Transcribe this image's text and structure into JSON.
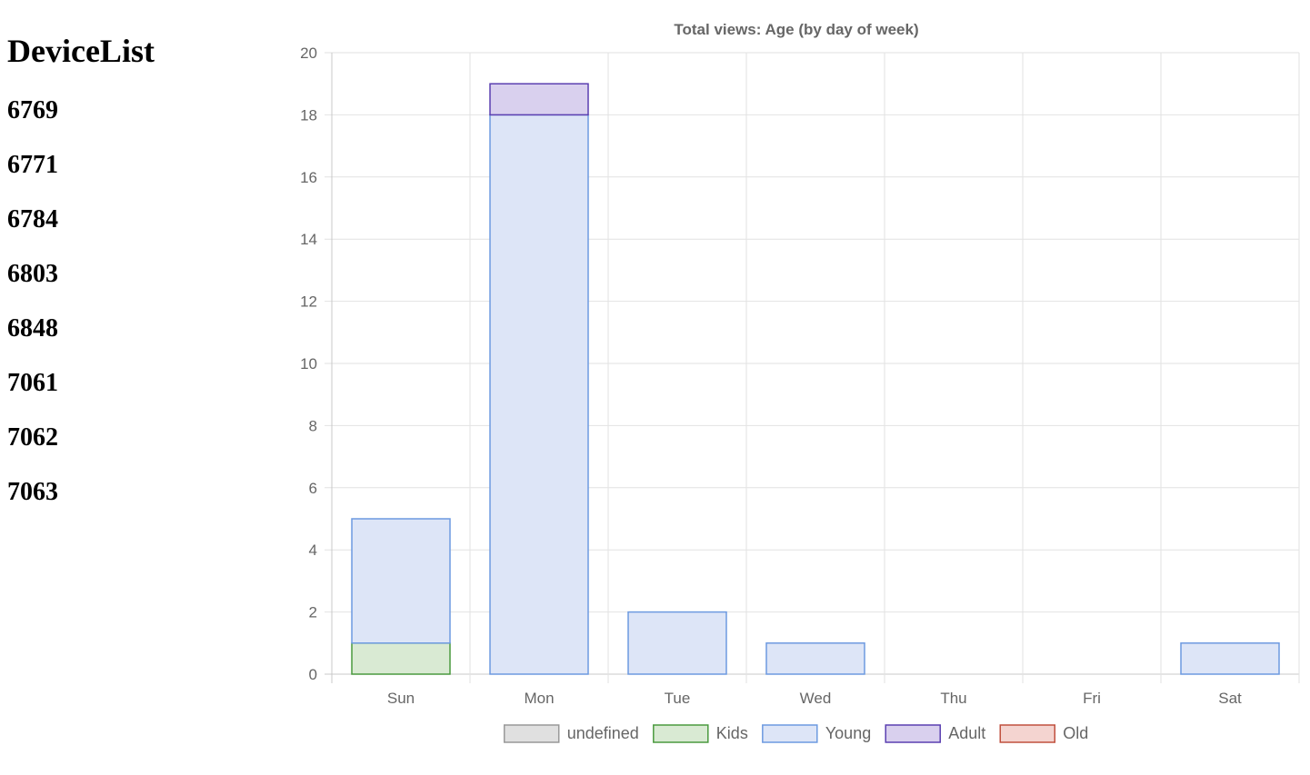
{
  "sidebar": {
    "title": "DeviceList",
    "devices": [
      "6769",
      "6771",
      "6784",
      "6803",
      "6848",
      "7061",
      "7062",
      "7063"
    ]
  },
  "chart_data": {
    "type": "bar",
    "stacked": true,
    "title": "Total views: Age (by day of week)",
    "categories": [
      "Sun",
      "Mon",
      "Tue",
      "Wed",
      "Thu",
      "Fri",
      "Sat"
    ],
    "ylim": [
      0,
      20
    ],
    "ytick_step": 2,
    "grid": true,
    "legend_position": "bottom",
    "series": [
      {
        "name": "undefined",
        "values": [
          0,
          0,
          0,
          0,
          0,
          0,
          0
        ],
        "fill": "#e0e0e0",
        "stroke": "#999999"
      },
      {
        "name": "Kids",
        "values": [
          1,
          0,
          0,
          0,
          0,
          0,
          0
        ],
        "fill": "#d9ead3",
        "stroke": "#4a9a3e"
      },
      {
        "name": "Young",
        "values": [
          4,
          18,
          2,
          1,
          0,
          0,
          1
        ],
        "fill": "#dde5f7",
        "stroke": "#6d9ae0"
      },
      {
        "name": "Adult",
        "values": [
          0,
          1,
          0,
          0,
          0,
          0,
          0
        ],
        "fill": "#d9d0ee",
        "stroke": "#5a3fb0"
      },
      {
        "name": "Old",
        "values": [
          0,
          0,
          0,
          0,
          0,
          0,
          0
        ],
        "fill": "#f4d4d0",
        "stroke": "#c0503e"
      }
    ]
  }
}
